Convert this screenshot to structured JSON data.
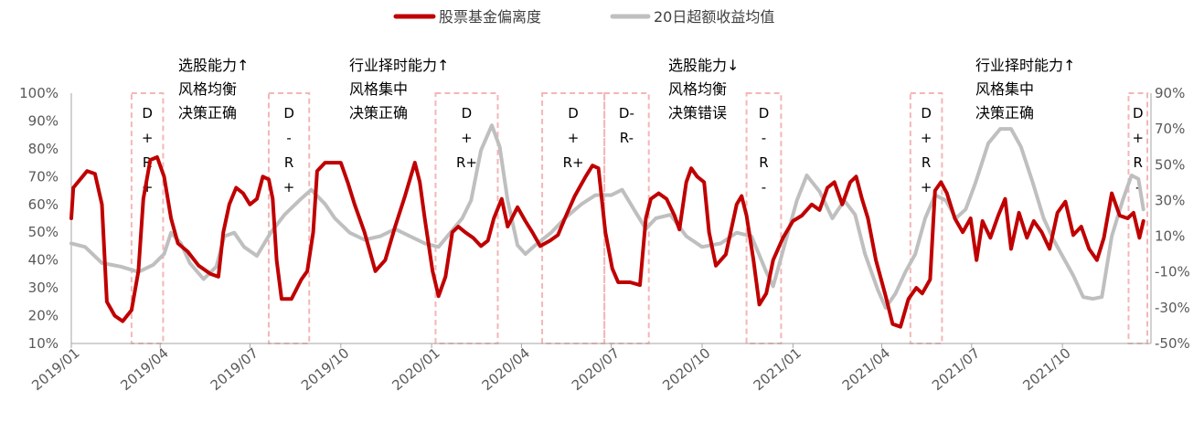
{
  "colors": {
    "deviation": "#C00000",
    "excess": "#BFBFBF",
    "window_box": "#F4B6B6",
    "axis": "#A6A6A6",
    "text": "#595959"
  },
  "legend": {
    "deviation_label": "股票基金偏离度",
    "excess_label": "20日超额收益均值"
  },
  "annotations": [
    {
      "id": "a1",
      "lines": [
        "选股能力↑",
        "风格均衡",
        "决策正确"
      ]
    },
    {
      "id": "a2",
      "lines": [
        "行业择时能力↑",
        "风格集中",
        "决策正确"
      ]
    },
    {
      "id": "a3",
      "lines": [
        "选股能力↓",
        "风格均衡",
        "决策错误"
      ]
    },
    {
      "id": "a4",
      "lines": [
        "行业择时能力↑",
        "风格集中",
        "决策正确"
      ]
    }
  ],
  "chart_data": {
    "type": "line",
    "title": "",
    "legend_position": "top",
    "grid": false,
    "x_ticks": [
      "2019/01",
      "2019/04",
      "2019/07",
      "2019/10",
      "2020/01",
      "2020/04",
      "2020/07",
      "2020/10",
      "2021/01",
      "2021/04",
      "2021/07",
      "2021/10"
    ],
    "x_range": [
      "2019/01",
      "2021/12"
    ],
    "y_left": {
      "ticks": [
        "100%",
        "90%",
        "80%",
        "70%",
        "60%",
        "50%",
        "40%",
        "30%",
        "20%",
        "10%"
      ],
      "range": [
        10,
        100
      ],
      "unit": "%"
    },
    "y_right": {
      "ticks": [
        "90%",
        "70%",
        "50%",
        "30%",
        "10%",
        "-10%",
        "-30%",
        "-50%"
      ],
      "range": [
        -50,
        90
      ],
      "unit": "%"
    },
    "series": [
      {
        "name": "股票基金偏离度",
        "axis": "left",
        "points": [
          [
            "2019-01-01",
            55
          ],
          [
            "2019-01-03",
            66
          ],
          [
            "2019-01-10",
            69
          ],
          [
            "2019-01-17",
            72
          ],
          [
            "2019-01-25",
            71
          ],
          [
            "2019-02-01",
            60
          ],
          [
            "2019-02-06",
            25
          ],
          [
            "2019-02-14",
            20
          ],
          [
            "2019-02-22",
            18
          ],
          [
            "2019-03-03",
            22
          ],
          [
            "2019-03-10",
            36
          ],
          [
            "2019-03-15",
            62
          ],
          [
            "2019-03-22",
            76
          ],
          [
            "2019-03-29",
            77
          ],
          [
            "2019-04-05",
            70
          ],
          [
            "2019-04-12",
            55
          ],
          [
            "2019-04-19",
            46
          ],
          [
            "2019-04-29",
            43
          ],
          [
            "2019-05-10",
            38
          ],
          [
            "2019-05-22",
            35
          ],
          [
            "2019-05-30",
            34
          ],
          [
            "2019-06-04",
            50
          ],
          [
            "2019-06-10",
            60
          ],
          [
            "2019-06-17",
            66
          ],
          [
            "2019-06-24",
            64
          ],
          [
            "2019-07-01",
            60
          ],
          [
            "2019-07-08",
            62
          ],
          [
            "2019-07-14",
            70
          ],
          [
            "2019-07-20",
            69
          ],
          [
            "2019-07-24",
            62
          ],
          [
            "2019-07-28",
            40
          ],
          [
            "2019-08-02",
            26
          ],
          [
            "2019-08-12",
            26
          ],
          [
            "2019-08-22",
            33
          ],
          [
            "2019-08-28",
            36
          ],
          [
            "2019-09-03",
            50
          ],
          [
            "2019-09-07",
            72
          ],
          [
            "2019-09-15",
            75
          ],
          [
            "2019-09-25",
            75
          ],
          [
            "2019-10-01",
            75
          ],
          [
            "2019-10-08",
            68
          ],
          [
            "2019-10-15",
            60
          ],
          [
            "2019-10-25",
            50
          ],
          [
            "2019-11-05",
            36
          ],
          [
            "2019-11-15",
            40
          ],
          [
            "2019-11-25",
            52
          ],
          [
            "2019-12-05",
            63
          ],
          [
            "2019-12-15",
            75
          ],
          [
            "2019-12-20",
            68
          ],
          [
            "2019-12-25",
            55
          ],
          [
            "2020-01-02",
            36
          ],
          [
            "2020-01-08",
            27
          ],
          [
            "2020-01-15",
            34
          ],
          [
            "2020-01-22",
            50
          ],
          [
            "2020-01-28",
            52
          ],
          [
            "2020-02-04",
            50
          ],
          [
            "2020-02-12",
            48
          ],
          [
            "2020-02-20",
            45
          ],
          [
            "2020-02-27",
            47
          ],
          [
            "2020-03-04",
            55
          ],
          [
            "2020-03-12",
            62
          ],
          [
            "2020-03-18",
            52
          ],
          [
            "2020-03-28",
            59
          ],
          [
            "2020-04-05",
            54
          ],
          [
            "2020-04-12",
            50
          ],
          [
            "2020-04-20",
            45
          ],
          [
            "2020-04-30",
            47
          ],
          [
            "2020-05-08",
            49
          ],
          [
            "2020-05-15",
            55
          ],
          [
            "2020-05-25",
            63
          ],
          [
            "2020-06-05",
            70
          ],
          [
            "2020-06-12",
            74
          ],
          [
            "2020-06-18",
            73
          ],
          [
            "2020-06-25",
            50
          ],
          [
            "2020-07-02",
            37
          ],
          [
            "2020-07-08",
            32
          ],
          [
            "2020-07-20",
            32
          ],
          [
            "2020-07-30",
            31
          ],
          [
            "2020-08-05",
            55
          ],
          [
            "2020-08-10",
            62
          ],
          [
            "2020-08-18",
            64
          ],
          [
            "2020-08-26",
            62
          ],
          [
            "2020-09-03",
            56
          ],
          [
            "2020-09-08",
            51
          ],
          [
            "2020-09-15",
            68
          ],
          [
            "2020-09-20",
            73
          ],
          [
            "2020-09-26",
            70
          ],
          [
            "2020-10-03",
            68
          ],
          [
            "2020-10-08",
            50
          ],
          [
            "2020-10-15",
            38
          ],
          [
            "2020-10-25",
            42
          ],
          [
            "2020-11-05",
            60
          ],
          [
            "2020-11-10",
            63
          ],
          [
            "2020-11-15",
            56
          ],
          [
            "2020-11-22",
            40
          ],
          [
            "2020-11-28",
            24
          ],
          [
            "2020-12-05",
            28
          ],
          [
            "2020-12-12",
            40
          ],
          [
            "2020-12-22",
            48
          ],
          [
            "2021-01-01",
            54
          ],
          [
            "2021-01-10",
            56
          ],
          [
            "2021-01-20",
            60
          ],
          [
            "2021-01-28",
            58
          ],
          [
            "2021-02-05",
            66
          ],
          [
            "2021-02-12",
            68
          ],
          [
            "2021-02-20",
            60
          ],
          [
            "2021-02-28",
            68
          ],
          [
            "2021-03-06",
            70
          ],
          [
            "2021-03-12",
            62
          ],
          [
            "2021-03-18",
            55
          ],
          [
            "2021-03-26",
            40
          ],
          [
            "2021-04-05",
            27
          ],
          [
            "2021-04-12",
            17
          ],
          [
            "2021-04-20",
            16
          ],
          [
            "2021-04-28",
            26
          ],
          [
            "2021-05-06",
            30
          ],
          [
            "2021-05-12",
            28
          ],
          [
            "2021-05-20",
            33
          ],
          [
            "2021-05-25",
            65
          ],
          [
            "2021-05-31",
            68
          ],
          [
            "2021-06-06",
            64
          ],
          [
            "2021-06-14",
            55
          ],
          [
            "2021-06-22",
            50
          ],
          [
            "2021-06-30",
            55
          ],
          [
            "2021-07-06",
            40
          ],
          [
            "2021-07-12",
            54
          ],
          [
            "2021-07-20",
            48
          ],
          [
            "2021-07-28",
            56
          ],
          [
            "2021-08-04",
            62
          ],
          [
            "2021-08-10",
            44
          ],
          [
            "2021-08-18",
            57
          ],
          [
            "2021-08-26",
            48
          ],
          [
            "2021-09-02",
            54
          ],
          [
            "2021-09-10",
            50
          ],
          [
            "2021-09-18",
            44
          ],
          [
            "2021-09-26",
            57
          ],
          [
            "2021-10-04",
            61
          ],
          [
            "2021-10-12",
            49
          ],
          [
            "2021-10-20",
            52
          ],
          [
            "2021-10-28",
            44
          ],
          [
            "2021-11-05",
            40
          ],
          [
            "2021-11-12",
            48
          ],
          [
            "2021-11-20",
            64
          ],
          [
            "2021-11-28",
            56
          ],
          [
            "2021-12-06",
            55
          ],
          [
            "2021-12-12",
            57
          ],
          [
            "2021-12-18",
            48
          ],
          [
            "2021-12-22",
            54
          ]
        ]
      },
      {
        "name": "20日超额收益均值",
        "axis": "right",
        "points": [
          [
            "2019-01-01",
            6
          ],
          [
            "2019-01-15",
            4
          ],
          [
            "2019-02-01",
            -5
          ],
          [
            "2019-02-20",
            -7
          ],
          [
            "2019-03-10",
            -10
          ],
          [
            "2019-03-25",
            -6
          ],
          [
            "2019-04-05",
            0
          ],
          [
            "2019-04-12",
            12
          ],
          [
            "2019-04-22",
            6
          ],
          [
            "2019-05-01",
            -5
          ],
          [
            "2019-05-15",
            -14
          ],
          [
            "2019-05-28",
            -7
          ],
          [
            "2019-06-05",
            10
          ],
          [
            "2019-06-15",
            12
          ],
          [
            "2019-06-25",
            4
          ],
          [
            "2019-07-08",
            -1
          ],
          [
            "2019-07-22",
            12
          ],
          [
            "2019-08-05",
            22
          ],
          [
            "2019-08-20",
            30
          ],
          [
            "2019-09-01",
            36
          ],
          [
            "2019-09-15",
            28
          ],
          [
            "2019-09-25",
            20
          ],
          [
            "2019-10-10",
            12
          ],
          [
            "2019-10-25",
            8
          ],
          [
            "2019-11-10",
            10
          ],
          [
            "2019-11-25",
            14
          ],
          [
            "2019-12-10",
            10
          ],
          [
            "2019-12-25",
            6
          ],
          [
            "2020-01-08",
            4
          ],
          [
            "2020-01-20",
            12
          ],
          [
            "2020-02-01",
            20
          ],
          [
            "2020-02-10",
            30
          ],
          [
            "2020-02-20",
            58
          ],
          [
            "2020-03-02",
            72
          ],
          [
            "2020-03-10",
            60
          ],
          [
            "2020-03-18",
            30
          ],
          [
            "2020-03-28",
            5
          ],
          [
            "2020-04-05",
            0
          ],
          [
            "2020-04-15",
            5
          ],
          [
            "2020-05-01",
            12
          ],
          [
            "2020-05-15",
            20
          ],
          [
            "2020-06-01",
            28
          ],
          [
            "2020-06-15",
            33
          ],
          [
            "2020-07-01",
            33
          ],
          [
            "2020-07-12",
            36
          ],
          [
            "2020-07-25",
            24
          ],
          [
            "2020-08-05",
            14
          ],
          [
            "2020-08-15",
            20
          ],
          [
            "2020-08-30",
            22
          ],
          [
            "2020-09-15",
            10
          ],
          [
            "2020-10-01",
            4
          ],
          [
            "2020-10-20",
            6
          ],
          [
            "2020-11-05",
            12
          ],
          [
            "2020-11-20",
            10
          ],
          [
            "2020-12-05",
            -10
          ],
          [
            "2020-12-12",
            -18
          ],
          [
            "2020-12-25",
            8
          ],
          [
            "2021-01-05",
            30
          ],
          [
            "2021-01-15",
            44
          ],
          [
            "2021-01-28",
            35
          ],
          [
            "2021-02-10",
            20
          ],
          [
            "2021-02-22",
            30
          ],
          [
            "2021-03-05",
            22
          ],
          [
            "2021-03-15",
            0
          ],
          [
            "2021-03-28",
            -20
          ],
          [
            "2021-04-05",
            -30
          ],
          [
            "2021-04-15",
            -22
          ],
          [
            "2021-04-25",
            -10
          ],
          [
            "2021-05-05",
            0
          ],
          [
            "2021-05-15",
            20
          ],
          [
            "2021-05-25",
            33
          ],
          [
            "2021-06-05",
            30
          ],
          [
            "2021-06-15",
            20
          ],
          [
            "2021-06-25",
            25
          ],
          [
            "2021-07-05",
            40
          ],
          [
            "2021-07-18",
            62
          ],
          [
            "2021-07-30",
            70
          ],
          [
            "2021-08-10",
            70
          ],
          [
            "2021-08-20",
            60
          ],
          [
            "2021-09-01",
            40
          ],
          [
            "2021-09-12",
            20
          ],
          [
            "2021-09-22",
            8
          ],
          [
            "2021-10-02",
            -2
          ],
          [
            "2021-10-12",
            -12
          ],
          [
            "2021-10-22",
            -24
          ],
          [
            "2021-11-01",
            -25
          ],
          [
            "2021-11-10",
            -24
          ],
          [
            "2021-11-20",
            10
          ],
          [
            "2021-12-01",
            30
          ],
          [
            "2021-12-10",
            44
          ],
          [
            "2021-12-17",
            42
          ],
          [
            "2021-12-22",
            25
          ]
        ]
      }
    ],
    "highlight_windows": [
      {
        "start": "2019-03-03",
        "end": "2019-04-04",
        "label": [
          "D",
          "+",
          "R",
          "+"
        ]
      },
      {
        "start": "2019-07-20",
        "end": "2019-08-30",
        "label": [
          "D",
          "-",
          "R",
          "+"
        ]
      },
      {
        "start": "2020-01-05",
        "end": "2020-03-08",
        "label": [
          "D",
          "+",
          "R+"
        ]
      },
      {
        "start": "2020-04-22",
        "end": "2020-06-24",
        "label": [
          "D",
          "+",
          "R+"
        ]
      },
      {
        "start": "2020-06-24",
        "end": "2020-08-08",
        "label": [
          "D-",
          "R-"
        ]
      },
      {
        "start": "2020-11-15",
        "end": "2020-12-20",
        "label": [
          "D",
          "-",
          "R",
          "-"
        ]
      },
      {
        "start": "2021-04-30",
        "end": "2021-06-01",
        "label": [
          "D",
          "+",
          "R",
          "+"
        ]
      },
      {
        "start": "2021-12-07",
        "end": "2021-12-26",
        "label": [
          "D",
          "+",
          "R",
          "-"
        ]
      }
    ]
  }
}
